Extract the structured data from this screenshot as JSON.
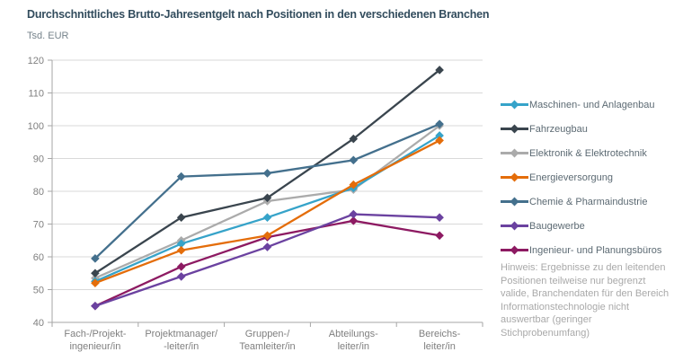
{
  "title": "Durchschnittliches Brutto-Jahresentgelt nach Positionen in den verschiedenen Branchen",
  "unit_label": "Tsd. EUR",
  "note": "Hinweis: Ergebnisse zu den leitenden Positionen teilweise nur begrenzt valide, Branchendaten für den Bereich Informationstechnologie nicht auswertbar (geringer Stichprobenumfang)",
  "chart_data": {
    "type": "line",
    "title": "Durchschnittliches Brutto-Jahresentgelt nach Positionen in den verschiedenen Branchen",
    "ylabel": "Tsd. EUR",
    "ylim": [
      40,
      120
    ],
    "ytick_step": 10,
    "grid": true,
    "legend_position": "right",
    "marker": "diamond",
    "categories": [
      [
        "Fach-/Projekt-",
        "ingenieur/in"
      ],
      [
        "Projektmanager/",
        "-leiter/in"
      ],
      [
        "Gruppen-/",
        "Teamleiter/in"
      ],
      [
        "Abteilungs-",
        "leiter/in"
      ],
      [
        "Bereichs-",
        "leiter/in"
      ]
    ],
    "series": [
      {
        "name": "Maschinen- und Anlagenbau",
        "color": "#36a3c9",
        "values": [
          52.5,
          64,
          72,
          81,
          97
        ]
      },
      {
        "name": "Fahrzeugbau",
        "color": "#3a454e",
        "values": [
          55,
          72,
          78,
          96,
          117
        ]
      },
      {
        "name": "Elektronik & Elektrotechnik",
        "color": "#ababab",
        "values": [
          53.5,
          65,
          77,
          80.5,
          100
        ]
      },
      {
        "name": "Energieversorgung",
        "color": "#e46d0a",
        "values": [
          52,
          62,
          66.5,
          82,
          95.5
        ]
      },
      {
        "name": "Chemie & Pharmaindustrie",
        "color": "#44708d",
        "values": [
          59.5,
          84.5,
          85.5,
          89.5,
          100.5
        ]
      },
      {
        "name": "Baugewerbe",
        "color": "#6b42a0",
        "values": [
          45,
          54,
          63,
          73,
          72
        ]
      },
      {
        "name": "Ingenieur- und Planungsbüros",
        "color": "#8d1a62",
        "values": [
          45,
          57,
          66,
          71,
          66.5
        ]
      }
    ],
    "axis_color": "#a6a6a6",
    "gridline_color": "#d9d9d9",
    "tick_label_color": "#7f7f7f"
  }
}
